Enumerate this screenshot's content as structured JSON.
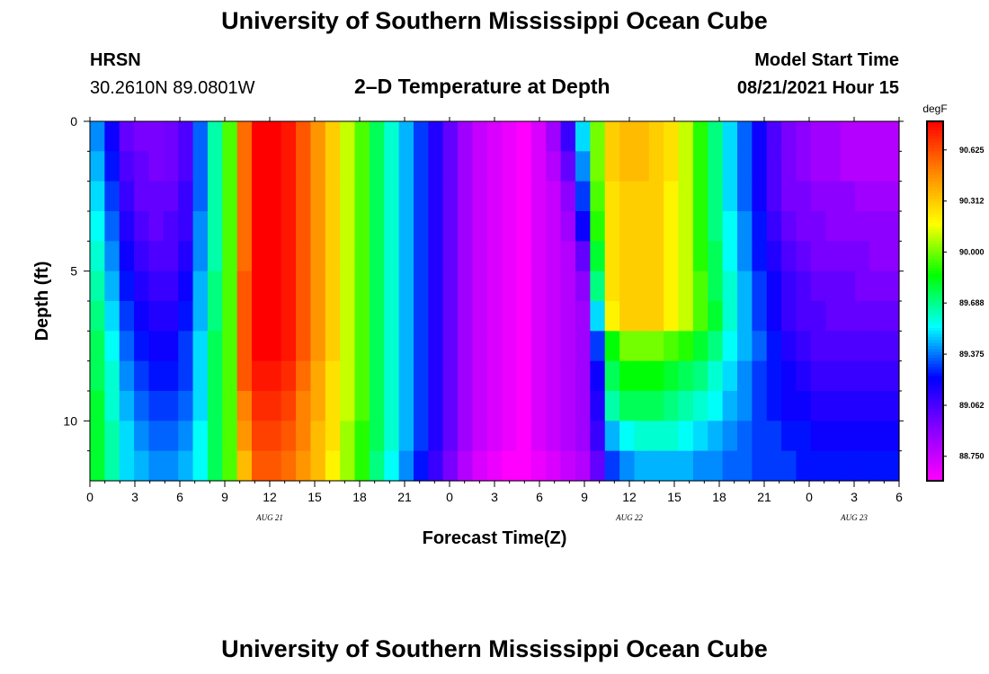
{
  "header": {
    "title": "University of Southern Mississippi Ocean Cube",
    "station": "HRSN",
    "coords": "30.2610N  89.0801W",
    "subtitle": "2–D Temperature at Depth",
    "model_label": "Model Start Time",
    "model_time": "08/21/2021 Hour 15"
  },
  "footer": {
    "title": "University of Southern Mississippi Ocean Cube"
  },
  "chart_data": {
    "type": "heatmap",
    "xlabel": "Forecast Time(Z)",
    "ylabel": "Depth (ft)",
    "x_tick_labels": [
      "0",
      "3",
      "6",
      "9",
      "12",
      "15",
      "18",
      "21",
      "0",
      "3",
      "6",
      "9",
      "12",
      "15",
      "18",
      "21",
      "0",
      "3",
      "6"
    ],
    "x_hours": [
      0,
      54
    ],
    "y_ticks": [
      0,
      5,
      10
    ],
    "y_range": [
      0,
      12
    ],
    "date_labels": [
      {
        "label": "AUG  21",
        "hour": 12
      },
      {
        "label": "AUG  22",
        "hour": 36
      },
      {
        "label": "AUG  23",
        "hour": 51
      }
    ],
    "colorbar": {
      "unit": "degF",
      "labels": [
        "90.625",
        "90.312",
        "90.000",
        "89.688",
        "89.375",
        "89.062",
        "88.750"
      ],
      "range": [
        88.6,
        90.8
      ],
      "colors": [
        "#ff00ff",
        "#8800ff",
        "#0000ff",
        "#00ffff",
        "#00ff00",
        "#ffff00",
        "#ff8800",
        "#ff0000"
      ]
    },
    "depths_ft": [
      0.5,
      1.5,
      2.5,
      3.5,
      4.5,
      5.5,
      6.5,
      7.5,
      8.5,
      9.5,
      10.5,
      11.5
    ],
    "hours": [
      0,
      1,
      2,
      3,
      4,
      5,
      6,
      7,
      8,
      9,
      10,
      11,
      12,
      13,
      14,
      15,
      16,
      17,
      18,
      19,
      20,
      21,
      22,
      23,
      24,
      25,
      26,
      27,
      28,
      29,
      30,
      31,
      32,
      33,
      34,
      35,
      36,
      37,
      38,
      39,
      40,
      41,
      42,
      43,
      44,
      45,
      46,
      47,
      48,
      49,
      50,
      51,
      52,
      53,
      54
    ],
    "profiles": [
      [
        89.4,
        89.2,
        89.0,
        88.95,
        88.95,
        88.97,
        89.05,
        89.35,
        89.65,
        89.95,
        90.55,
        90.8,
        90.8,
        90.75,
        90.6,
        90.45,
        90.3,
        90.1,
        89.95,
        89.75,
        89.6,
        89.45,
        89.3,
        89.15,
        89.0,
        88.85,
        88.75,
        88.7,
        88.65,
        88.6,
        88.7,
        88.85,
        89.1,
        89.5,
        90.0,
        90.3,
        90.35,
        90.35,
        90.3,
        90.25,
        90.1,
        89.9,
        89.7,
        89.5,
        89.35,
        89.2,
        89.05,
        88.95,
        88.9,
        88.85,
        88.85,
        88.8,
        88.8,
        88.8,
        88.8
      ],
      [
        89.45,
        89.25,
        89.05,
        89.0,
        88.95,
        88.97,
        89.05,
        89.35,
        89.65,
        89.95,
        90.55,
        90.8,
        90.8,
        90.75,
        90.6,
        90.45,
        90.3,
        90.1,
        89.95,
        89.75,
        89.6,
        89.45,
        89.3,
        89.15,
        89.0,
        88.85,
        88.75,
        88.7,
        88.65,
        88.6,
        88.7,
        88.8,
        89.0,
        89.4,
        90.0,
        90.3,
        90.35,
        90.35,
        90.3,
        90.25,
        90.1,
        89.9,
        89.7,
        89.5,
        89.35,
        89.2,
        89.05,
        88.95,
        88.9,
        88.85,
        88.85,
        88.8,
        88.8,
        88.8,
        88.8
      ],
      [
        89.5,
        89.3,
        89.1,
        89.0,
        89.0,
        89.0,
        89.1,
        89.35,
        89.65,
        89.95,
        90.55,
        90.8,
        90.8,
        90.75,
        90.6,
        90.45,
        90.3,
        90.1,
        89.95,
        89.75,
        89.6,
        89.45,
        89.3,
        89.15,
        89.0,
        88.85,
        88.75,
        88.7,
        88.65,
        88.6,
        88.7,
        88.75,
        88.9,
        89.3,
        89.95,
        90.25,
        90.3,
        90.3,
        90.3,
        90.2,
        90.1,
        89.9,
        89.7,
        89.5,
        89.35,
        89.2,
        89.05,
        88.95,
        88.95,
        88.9,
        88.9,
        88.9,
        88.85,
        88.85,
        88.85
      ],
      [
        89.55,
        89.35,
        89.15,
        89.05,
        89.0,
        89.05,
        89.1,
        89.4,
        89.65,
        89.95,
        90.55,
        90.8,
        90.8,
        90.75,
        90.6,
        90.45,
        90.3,
        90.1,
        89.95,
        89.75,
        89.6,
        89.45,
        89.3,
        89.15,
        89.0,
        88.85,
        88.75,
        88.7,
        88.65,
        88.6,
        88.7,
        88.75,
        88.85,
        89.2,
        89.9,
        90.25,
        90.3,
        90.3,
        90.3,
        90.2,
        90.1,
        89.9,
        89.7,
        89.55,
        89.4,
        89.25,
        89.1,
        89.0,
        88.95,
        88.95,
        88.9,
        88.9,
        88.9,
        88.9,
        88.9
      ],
      [
        89.6,
        89.4,
        89.2,
        89.1,
        89.05,
        89.05,
        89.15,
        89.4,
        89.65,
        89.95,
        90.55,
        90.8,
        90.8,
        90.75,
        90.6,
        90.45,
        90.3,
        90.1,
        89.95,
        89.75,
        89.6,
        89.45,
        89.3,
        89.15,
        89.0,
        88.85,
        88.75,
        88.7,
        88.65,
        88.6,
        88.7,
        88.75,
        88.8,
        89.0,
        89.8,
        90.25,
        90.3,
        90.3,
        90.3,
        90.2,
        90.1,
        89.9,
        89.75,
        89.55,
        89.4,
        89.25,
        89.15,
        89.05,
        89.0,
        88.95,
        88.95,
        88.95,
        88.95,
        88.9,
        88.9
      ],
      [
        89.65,
        89.45,
        89.25,
        89.15,
        89.1,
        89.1,
        89.2,
        89.45,
        89.7,
        89.95,
        90.6,
        90.8,
        90.8,
        90.75,
        90.6,
        90.45,
        90.3,
        90.1,
        89.95,
        89.75,
        89.6,
        89.45,
        89.3,
        89.15,
        89.0,
        88.85,
        88.75,
        88.7,
        88.65,
        88.6,
        88.7,
        88.75,
        88.8,
        88.9,
        89.7,
        90.25,
        90.3,
        90.3,
        90.3,
        90.2,
        90.1,
        89.95,
        89.75,
        89.6,
        89.45,
        89.3,
        89.2,
        89.1,
        89.05,
        89.0,
        89.0,
        89.0,
        88.95,
        88.95,
        88.95
      ],
      [
        89.7,
        89.5,
        89.3,
        89.2,
        89.15,
        89.15,
        89.25,
        89.45,
        89.7,
        89.95,
        90.6,
        90.8,
        90.8,
        90.75,
        90.6,
        90.45,
        90.3,
        90.1,
        89.95,
        89.75,
        89.6,
        89.45,
        89.3,
        89.15,
        89.0,
        88.85,
        88.75,
        88.7,
        88.65,
        88.6,
        88.7,
        88.75,
        88.8,
        88.85,
        89.5,
        90.2,
        90.3,
        90.3,
        90.3,
        90.2,
        90.1,
        89.95,
        89.8,
        89.6,
        89.45,
        89.3,
        89.2,
        89.1,
        89.05,
        89.05,
        89.0,
        89.0,
        89.0,
        89.0,
        89.0
      ],
      [
        89.75,
        89.55,
        89.35,
        89.25,
        89.2,
        89.2,
        89.3,
        89.5,
        89.75,
        89.95,
        90.6,
        90.8,
        90.8,
        90.75,
        90.6,
        90.45,
        90.3,
        90.1,
        89.95,
        89.75,
        89.6,
        89.45,
        89.3,
        89.15,
        89.0,
        88.85,
        88.75,
        88.7,
        88.65,
        88.6,
        88.7,
        88.75,
        88.8,
        88.85,
        89.3,
        89.85,
        90.0,
        90.0,
        90.0,
        89.95,
        89.9,
        89.8,
        89.7,
        89.55,
        89.45,
        89.35,
        89.25,
        89.15,
        89.1,
        89.05,
        89.05,
        89.05,
        89.05,
        89.05,
        89.05
      ],
      [
        89.75,
        89.6,
        89.4,
        89.3,
        89.25,
        89.25,
        89.3,
        89.5,
        89.75,
        89.95,
        90.6,
        90.75,
        90.75,
        90.7,
        90.55,
        90.4,
        90.25,
        90.1,
        89.95,
        89.75,
        89.6,
        89.45,
        89.3,
        89.15,
        89.0,
        88.85,
        88.75,
        88.7,
        88.65,
        88.6,
        88.7,
        88.75,
        88.8,
        88.85,
        89.2,
        89.75,
        89.85,
        89.85,
        89.85,
        89.8,
        89.75,
        89.7,
        89.6,
        89.5,
        89.4,
        89.3,
        89.25,
        89.2,
        89.15,
        89.1,
        89.1,
        89.1,
        89.1,
        89.1,
        89.1
      ],
      [
        89.8,
        89.6,
        89.45,
        89.35,
        89.3,
        89.3,
        89.35,
        89.5,
        89.75,
        89.95,
        90.5,
        90.7,
        90.7,
        90.65,
        90.5,
        90.4,
        90.25,
        90.1,
        89.95,
        89.75,
        89.6,
        89.45,
        89.3,
        89.15,
        89.0,
        88.85,
        88.75,
        88.7,
        88.65,
        88.6,
        88.7,
        88.75,
        88.8,
        88.85,
        89.15,
        89.65,
        89.75,
        89.75,
        89.75,
        89.7,
        89.65,
        89.6,
        89.55,
        89.45,
        89.4,
        89.3,
        89.25,
        89.2,
        89.2,
        89.15,
        89.15,
        89.15,
        89.15,
        89.15,
        89.15
      ],
      [
        89.8,
        89.65,
        89.5,
        89.4,
        89.35,
        89.35,
        89.4,
        89.55,
        89.75,
        89.95,
        90.45,
        90.65,
        90.65,
        90.6,
        90.5,
        90.35,
        90.25,
        90.05,
        89.9,
        89.75,
        89.6,
        89.45,
        89.3,
        89.15,
        89.0,
        88.85,
        88.75,
        88.7,
        88.65,
        88.6,
        88.7,
        88.75,
        88.8,
        88.85,
        89.1,
        89.45,
        89.55,
        89.6,
        89.6,
        89.6,
        89.55,
        89.5,
        89.45,
        89.4,
        89.35,
        89.3,
        89.3,
        89.25,
        89.25,
        89.2,
        89.2,
        89.2,
        89.2,
        89.2,
        89.2
      ],
      [
        89.8,
        89.65,
        89.5,
        89.45,
        89.4,
        89.4,
        89.45,
        89.55,
        89.75,
        89.95,
        90.35,
        90.6,
        90.6,
        90.55,
        90.45,
        90.35,
        90.2,
        90.05,
        89.9,
        89.7,
        89.55,
        89.4,
        89.25,
        89.1,
        88.95,
        88.8,
        88.7,
        88.65,
        88.6,
        88.6,
        88.65,
        88.7,
        88.75,
        88.8,
        89.0,
        89.3,
        89.4,
        89.45,
        89.45,
        89.45,
        89.45,
        89.4,
        89.4,
        89.35,
        89.35,
        89.3,
        89.3,
        89.3,
        89.25,
        89.25,
        89.25,
        89.25,
        89.25,
        89.25,
        89.25
      ]
    ]
  }
}
